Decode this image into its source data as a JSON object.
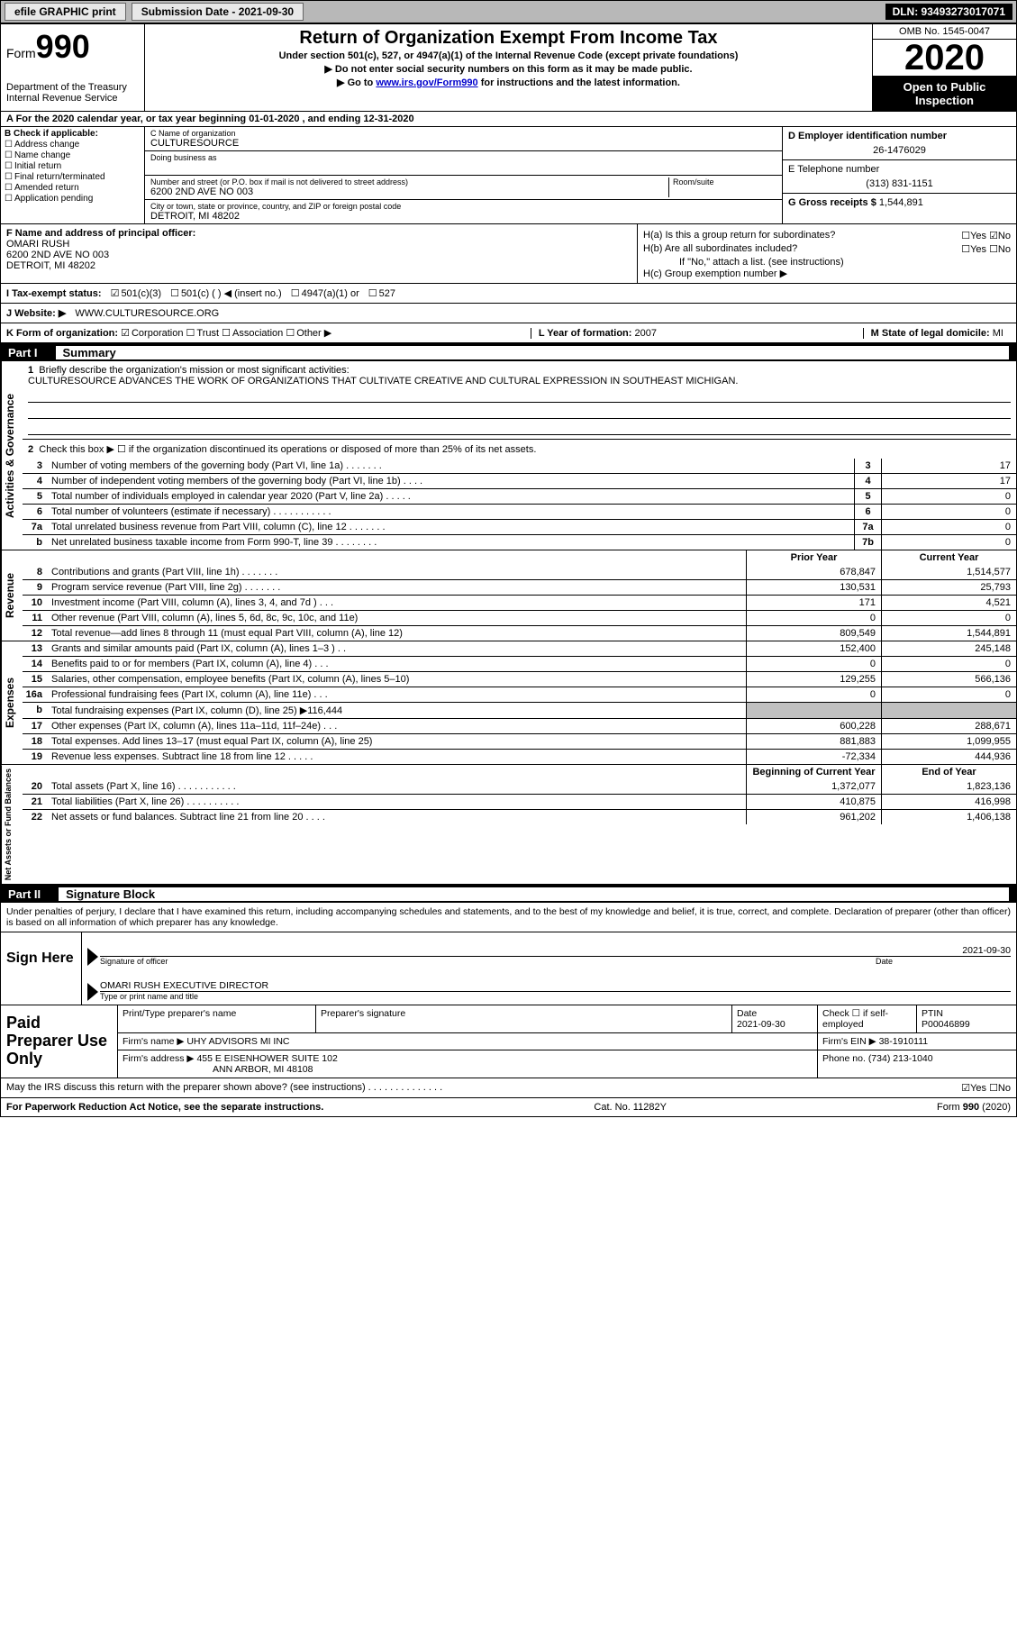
{
  "topbar": {
    "efile": "efile GRAPHIC print",
    "submission": "Submission Date - 2021-09-30",
    "dln": "DLN: 93493273017071"
  },
  "header": {
    "form_label": "Form",
    "form_num": "990",
    "dept1": "Department of the Treasury",
    "dept2": "Internal Revenue Service",
    "title": "Return of Organization Exempt From Income Tax",
    "sub1": "Under section 501(c), 527, or 4947(a)(1) of the Internal Revenue Code (except private foundations)",
    "sub2": "▶ Do not enter social security numbers on this form as it may be made public.",
    "sub3_pre": "▶ Go to ",
    "sub3_link": "www.irs.gov/Form990",
    "sub3_post": " for instructions and the latest information.",
    "omb": "OMB No. 1545-0047",
    "year": "2020",
    "inspect": "Open to Public Inspection"
  },
  "lineA": "A For the 2020 calendar year, or tax year beginning 01-01-2020    , and ending 12-31-2020",
  "colB": {
    "label": "B Check if applicable:",
    "o1": "Address change",
    "o2": "Name change",
    "o3": "Initial return",
    "o4": "Final return/terminated",
    "o5": "Amended return",
    "o6": "Application pending"
  },
  "colC": {
    "name_lbl": "C Name of organization",
    "name": "CULTURESOURCE",
    "dba_lbl": "Doing business as",
    "street_lbl": "Number and street (or P.O. box if mail is not delivered to street address)",
    "room_lbl": "Room/suite",
    "street": "6200 2ND AVE NO 003",
    "city_lbl": "City or town, state or province, country, and ZIP or foreign postal code",
    "city": "DETROIT, MI  48202"
  },
  "colD": {
    "ein_lbl": "D Employer identification number",
    "ein": "26-1476029",
    "tel_lbl": "E Telephone number",
    "tel": "(313) 831-1151",
    "gross_lbl": "G Gross receipts $",
    "gross": "1,544,891"
  },
  "rowF": {
    "lbl": "F Name and address of principal officer:",
    "name": "OMARI RUSH",
    "addr1": "6200 2ND AVE NO 003",
    "addr2": "DETROIT, MI  48202"
  },
  "colH": {
    "ha": "H(a)  Is this a group return for subordinates?",
    "ha_yn": "☐Yes ☑No",
    "hb": "H(b)  Are all subordinates included?",
    "hb_yn": "☐Yes ☐No",
    "hb_note": "If \"No,\" attach a list. (see instructions)",
    "hc": "H(c)  Group exemption number ▶"
  },
  "rowI": {
    "lbl": "I    Tax-exempt status:",
    "o1": "501(c)(3)",
    "o2": "501(c) (   ) ◀ (insert no.)",
    "o3": "4947(a)(1) or",
    "o4": "527"
  },
  "rowJ": {
    "lbl": "J   Website: ▶",
    "val": "WWW.CULTURESOURCE.ORG"
  },
  "rowK": {
    "lbl": "K Form of organization:",
    "o1": "Corporation",
    "o2": "Trust",
    "o3": "Association",
    "o4": "Other ▶",
    "l_lbl": "L Year of formation:",
    "l_val": "2007",
    "m_lbl": "M State of legal domicile:",
    "m_val": "MI"
  },
  "part1": {
    "tab": "Part I",
    "title": "Summary"
  },
  "summary": {
    "q1_lbl": "Briefly describe the organization's mission or most significant activities:",
    "q1_val": "CULTURESOURCE ADVANCES THE WORK OF ORGANIZATIONS THAT CULTIVATE CREATIVE AND CULTURAL EXPRESSION IN SOUTHEAST MICHIGAN.",
    "q2": "Check this box ▶ ☐  if the organization discontinued its operations or disposed of more than 25% of its net assets.",
    "lines_gov": [
      {
        "n": "3",
        "d": "Number of voting members of the governing body (Part VI, line 1a)   .    .    .    .    .    .    .",
        "b": "3",
        "v": "17"
      },
      {
        "n": "4",
        "d": "Number of independent voting members of the governing body (Part VI, line 1b)    .    .    .    .",
        "b": "4",
        "v": "17"
      },
      {
        "n": "5",
        "d": "Total number of individuals employed in calendar year 2020 (Part V, line 2a)    .    .    .    .    .",
        "b": "5",
        "v": "0"
      },
      {
        "n": "6",
        "d": "Total number of volunteers (estimate if necessary)   .    .    .    .    .    .    .    .    .    .    .",
        "b": "6",
        "v": "0"
      },
      {
        "n": "7a",
        "d": "Total unrelated business revenue from Part VIII, column (C), line 12   .    .    .    .    .    .    .",
        "b": "7a",
        "v": "0"
      },
      {
        "n": "b",
        "d": "Net unrelated business taxable income from Form 990-T, line 39   .    .    .    .    .    .    .    .",
        "b": "7b",
        "v": "0"
      }
    ],
    "hdr_prior": "Prior Year",
    "hdr_curr": "Current Year",
    "rev": [
      {
        "n": "8",
        "d": "Contributions and grants (Part VIII, line 1h)    .    .    .    .    .    .    .",
        "p": "678,847",
        "c": "1,514,577"
      },
      {
        "n": "9",
        "d": "Program service revenue (Part VIII, line 2g)    .    .    .    .    .    .    .",
        "p": "130,531",
        "c": "25,793"
      },
      {
        "n": "10",
        "d": "Investment income (Part VIII, column (A), lines 3, 4, and 7d )   .    .    .",
        "p": "171",
        "c": "4,521"
      },
      {
        "n": "11",
        "d": "Other revenue (Part VIII, column (A), lines 5, 6d, 8c, 9c, 10c, and 11e)",
        "p": "0",
        "c": "0"
      },
      {
        "n": "12",
        "d": "Total revenue—add lines 8 through 11 (must equal Part VIII, column (A), line 12)",
        "p": "809,549",
        "c": "1,544,891"
      }
    ],
    "exp": [
      {
        "n": "13",
        "d": "Grants and similar amounts paid (Part IX, column (A), lines 1–3 )    .    .",
        "p": "152,400",
        "c": "245,148"
      },
      {
        "n": "14",
        "d": "Benefits paid to or for members (Part IX, column (A), line 4)    .    .    .",
        "p": "0",
        "c": "0"
      },
      {
        "n": "15",
        "d": "Salaries, other compensation, employee benefits (Part IX, column (A), lines 5–10)",
        "p": "129,255",
        "c": "566,136"
      },
      {
        "n": "16a",
        "d": "Professional fundraising fees (Part IX, column (A), line 11e)    .    .    .",
        "p": "0",
        "c": "0"
      },
      {
        "n": "b",
        "d": "Total fundraising expenses (Part IX, column (D), line 25) ▶116,444",
        "p": "",
        "c": "",
        "shade": true
      },
      {
        "n": "17",
        "d": "Other expenses (Part IX, column (A), lines 11a–11d, 11f–24e)    .    .    .",
        "p": "600,228",
        "c": "288,671"
      },
      {
        "n": "18",
        "d": "Total expenses. Add lines 13–17 (must equal Part IX, column (A), line 25)",
        "p": "881,883",
        "c": "1,099,955"
      },
      {
        "n": "19",
        "d": "Revenue less expenses. Subtract line 18 from line 12    .    .    .    .    .",
        "p": "-72,334",
        "c": "444,936"
      }
    ],
    "hdr_beg": "Beginning of Current Year",
    "hdr_end": "End of Year",
    "net": [
      {
        "n": "20",
        "d": "Total assets (Part X, line 16)    .    .    .    .    .    .    .    .    .    .    .",
        "p": "1,372,077",
        "c": "1,823,136"
      },
      {
        "n": "21",
        "d": "Total liabilities (Part X, line 26)    .    .    .    .    .    .    .    .    .    .",
        "p": "410,875",
        "c": "416,998"
      },
      {
        "n": "22",
        "d": "Net assets or fund balances. Subtract line 21 from line 20    .    .    .    .",
        "p": "961,202",
        "c": "1,406,138"
      }
    ],
    "vtab_gov": "Activities & Governance",
    "vtab_rev": "Revenue",
    "vtab_exp": "Expenses",
    "vtab_net": "Net Assets or Fund Balances"
  },
  "part2": {
    "tab": "Part II",
    "title": "Signature Block"
  },
  "sig": {
    "intro": "Under penalties of perjury, I declare that I have examined this return, including accompanying schedules and statements, and to the best of my knowledge and belief, it is true, correct, and complete. Declaration of preparer (other than officer) is based on all information of which preparer has any knowledge.",
    "sign_here": "Sign Here",
    "sig_officer_lbl": "Signature of officer",
    "date_lbl": "Date",
    "date_val": "2021-09-30",
    "name": "OMARI RUSH  EXECUTIVE DIRECTOR",
    "name_lbl": "Type or print name and title"
  },
  "paid": {
    "label": "Paid Preparer Use Only",
    "r1_c1": "Print/Type preparer's name",
    "r1_c2": "Preparer's signature",
    "r1_c3_lbl": "Date",
    "r1_c3": "2021-09-30",
    "r1_c4": "Check ☐ if self-employed",
    "r1_c5_lbl": "PTIN",
    "r1_c5": "P00046899",
    "r2_lbl": "Firm's name    ▶",
    "r2_val": "UHY ADVISORS MI INC",
    "r2_ein_lbl": "Firm's EIN ▶",
    "r2_ein": "38-1910111",
    "r3_lbl": "Firm's address ▶",
    "r3_val1": "455 E EISENHOWER SUITE 102",
    "r3_val2": "ANN ARBOR, MI  48108",
    "r3_ph_lbl": "Phone no.",
    "r3_ph": "(734) 213-1040"
  },
  "discuss": {
    "q": "May the IRS discuss this return with the preparer shown above? (see instructions)    .    .    .    .    .    .    .    .    .    .    .    .    .    .",
    "yn": "☑Yes  ☐No"
  },
  "footer": {
    "left": "For Paperwork Reduction Act Notice, see the separate instructions.",
    "mid": "Cat. No. 11282Y",
    "right": "Form 990 (2020)"
  },
  "colors": {
    "topbar_bg": "#b8b8b8",
    "btn_bg": "#e8e8e8",
    "dln_bg": "#000000",
    "link": "#0000cc",
    "shade": "#c0c0c0"
  }
}
